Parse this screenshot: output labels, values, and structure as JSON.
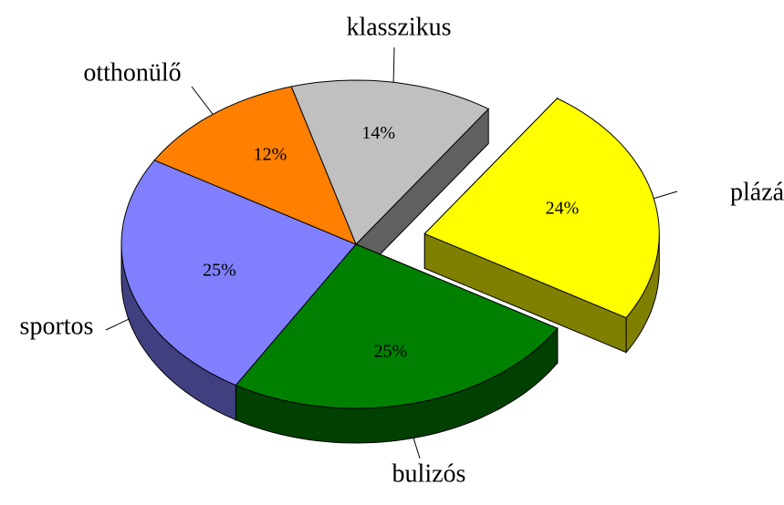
{
  "chart_data": {
    "type": "pie3d",
    "categories": [
      "klasszikus",
      "plázázó",
      "bulizós",
      "sportos",
      "otthonülő"
    ],
    "values": [
      14,
      24,
      25,
      25,
      12
    ],
    "value_labels": [
      "14%",
      "24%",
      "25%",
      "25%",
      "12%"
    ],
    "colors": [
      "#c0c0c0",
      "#ffff00",
      "#008000",
      "#8080ff",
      "#ff8000"
    ],
    "side_colors": [
      "#606060",
      "#808000",
      "#004000",
      "#404080",
      "#804000"
    ],
    "exploded": [
      false,
      true,
      false,
      false,
      false
    ]
  }
}
